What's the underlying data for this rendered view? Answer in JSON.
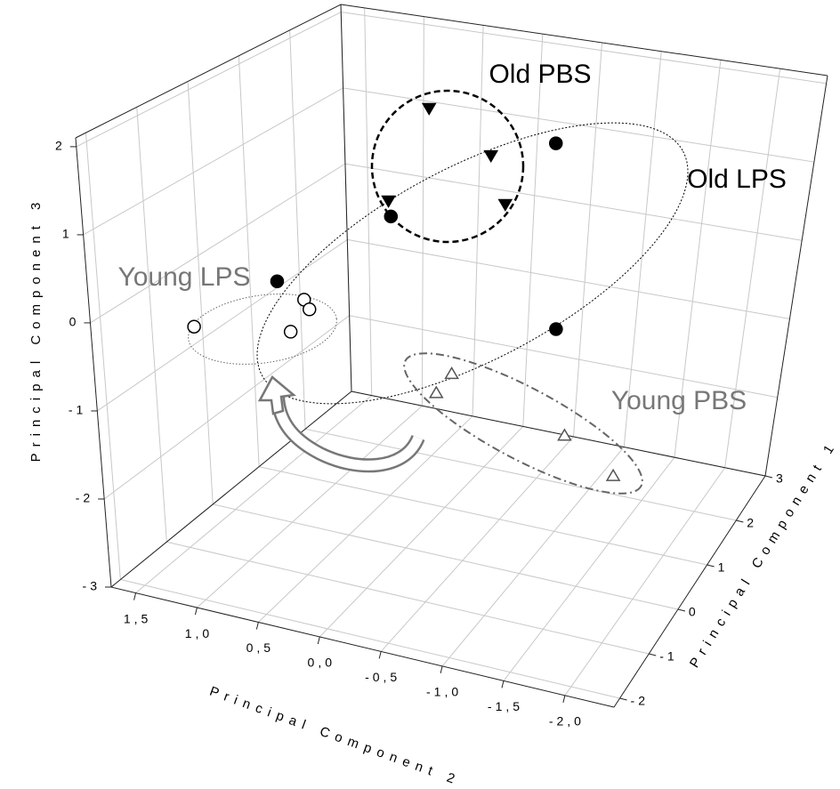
{
  "chart_data": {
    "type": "scatter3d",
    "x_label": "Principal Component 2",
    "y_label": "Principal Component 1",
    "z_label": "Principal Component 3",
    "xlim": [
      1.7,
      -2.4
    ],
    "ylim": [
      -2.2,
      3
    ],
    "zlim": [
      -3,
      2.1
    ],
    "xticks": [
      {
        "value": 1.5,
        "label": "1,5"
      },
      {
        "value": 1,
        "label": "1,0"
      },
      {
        "value": 0.5,
        "label": "0,5"
      },
      {
        "value": 0,
        "label": "0,0"
      },
      {
        "value": -0.5,
        "label": "-0,5"
      },
      {
        "value": -1,
        "label": "-1,0"
      },
      {
        "value": -1.5,
        "label": "-1,5"
      },
      {
        "value": -2,
        "label": "-2,0"
      }
    ],
    "yticks": [
      -2,
      -1,
      0,
      1,
      2,
      3
    ],
    "zticks": [
      -3,
      -2,
      -1,
      0,
      1,
      2
    ],
    "grid": true,
    "series": [
      {
        "name": "Old PBS",
        "marker": "triangle-down",
        "filled": true,
        "color": "#000000",
        "x": [
          0.17,
          -0.33,
          0.49,
          -0.46
        ],
        "y": [
          0.92,
          0.92,
          0.92,
          0.92
        ],
        "z": [
          1.86,
          1.41,
          0.65,
          0.85
        ]
      },
      {
        "name": "Old LPS",
        "marker": "circle",
        "filled": true,
        "color": "#000000",
        "x": [
          -0.84,
          0.47,
          0.92,
          -0.93
        ],
        "y": [
          0.92,
          0.92,
          -0.38,
          0.92
        ],
        "z": [
          1.68,
          0.46,
          0.05,
          -0.54
        ]
      },
      {
        "name": "Young LPS",
        "marker": "circle",
        "filled": false,
        "color": "#000000",
        "x": [
          1.3,
          0.43,
          0.39,
          0.54
        ],
        "y": [
          -1.16,
          -1.16,
          -1.16,
          -1.16
        ],
        "z": [
          -0.3,
          0.26,
          0.16,
          -0.14
        ]
      },
      {
        "name": "Young PBS",
        "marker": "triangle-up",
        "filled": false,
        "color": "#555555",
        "x": [
          -0.06,
          0.07,
          -1.06,
          -1.51
        ],
        "y": [
          0.92,
          0.92,
          0.92,
          0.92
        ],
        "z": [
          -1.32,
          -1.59,
          -1.79,
          -2.15
        ]
      }
    ]
  }
}
